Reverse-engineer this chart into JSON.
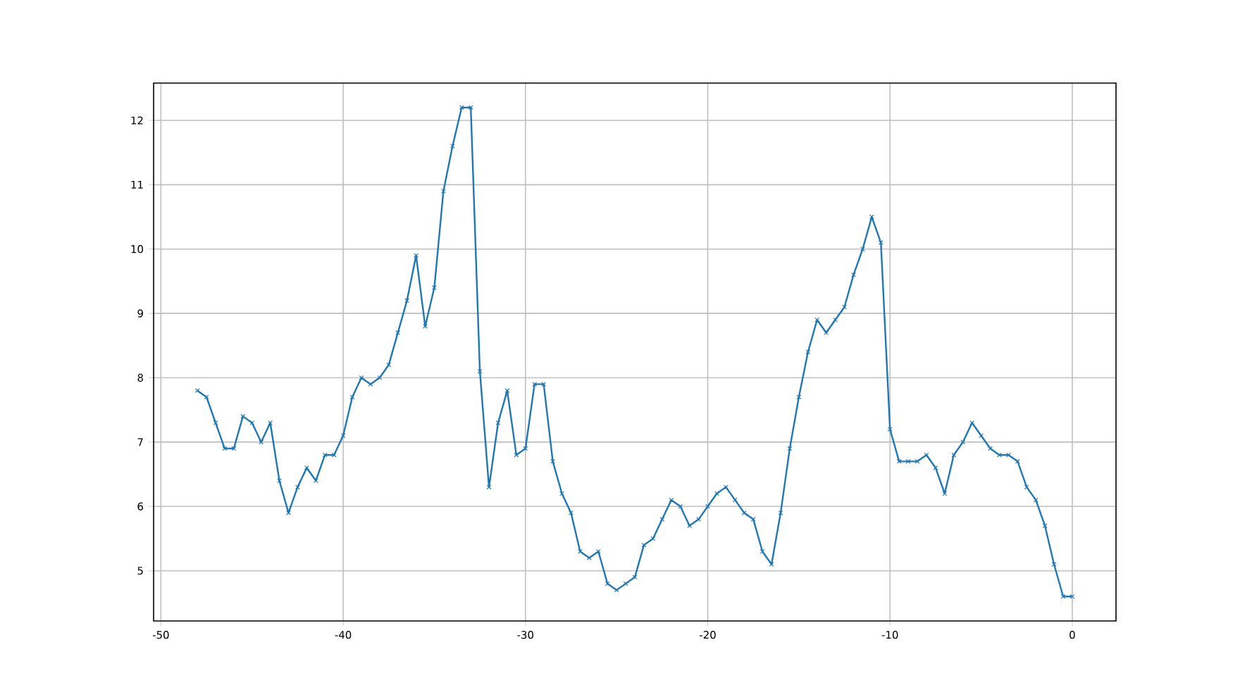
{
  "chart_data": {
    "type": "line",
    "x": [
      -48,
      -47.5,
      -47,
      -46.5,
      -46,
      -45.5,
      -45,
      -44.5,
      -44,
      -43.5,
      -43,
      -42.5,
      -42,
      -41.5,
      -41,
      -40.5,
      -40,
      -39.5,
      -39,
      -38.5,
      -38,
      -37.5,
      -37,
      -36.5,
      -36,
      -35.5,
      -35,
      -34.5,
      -34,
      -33.5,
      -33,
      -32.5,
      -32,
      -31.5,
      -31,
      -30.5,
      -30,
      -29.5,
      -29,
      -28.5,
      -28,
      -27.5,
      -27,
      -26.5,
      -26,
      -25.5,
      -25,
      -24.5,
      -24,
      -23.5,
      -23,
      -22.5,
      -22,
      -21.5,
      -21,
      -20.5,
      -20,
      -19.5,
      -19,
      -18.5,
      -18,
      -17.5,
      -17,
      -16.5,
      -16,
      -15.5,
      -15,
      -14.5,
      -14,
      -13.5,
      -13,
      -12.5,
      -12,
      -11.5,
      -11,
      -10.5,
      -10,
      -9.5,
      -9,
      -8.5,
      -8,
      -7.5,
      -7,
      -6.5,
      -6,
      -5.5,
      -5,
      -4.5,
      -4,
      -3.5,
      -3,
      -2.5,
      -2,
      -1.5,
      -1,
      -0.5,
      0
    ],
    "series": [
      {
        "color": "#1f77b4",
        "values": [
          7.8,
          7.7,
          7.3,
          6.9,
          6.9,
          7.4,
          7.3,
          7.0,
          7.3,
          6.4,
          5.9,
          6.3,
          6.6,
          6.4,
          6.8,
          6.8,
          7.1,
          7.7,
          8.0,
          7.9,
          8.0,
          8.2,
          8.7,
          9.2,
          9.9,
          8.8,
          9.4,
          10.9,
          11.6,
          12.2,
          12.2,
          8.1,
          6.3,
          7.3,
          7.8,
          6.8,
          6.9,
          7.9,
          7.9,
          6.7,
          6.2,
          5.9,
          5.3,
          5.2,
          5.3,
          4.8,
          4.7,
          4.8,
          4.9,
          5.4,
          5.5,
          5.8,
          6.1,
          6.0,
          5.7,
          5.8,
          6.0,
          6.2,
          6.3,
          6.1,
          5.9,
          5.8,
          5.3,
          5.1,
          5.9,
          6.9,
          7.7,
          8.4,
          8.9,
          8.7,
          8.9,
          9.1,
          9.6,
          10.0,
          10.5,
          10.1,
          7.2,
          6.7,
          6.7,
          6.7,
          6.8,
          6.6,
          6.2,
          6.8,
          7.0,
          7.3,
          7.1,
          6.9,
          6.8,
          6.8,
          6.7,
          6.3,
          6.1,
          5.7,
          5.1,
          4.6,
          4.6
        ]
      }
    ],
    "xlim": [
      -50.4,
      2.4
    ],
    "ylim": [
      4.22,
      12.58
    ],
    "xticks": [
      -50,
      -40,
      -30,
      -20,
      -10,
      0
    ],
    "yticks": [
      5,
      6,
      7,
      8,
      9,
      10,
      11,
      12
    ],
    "grid": true,
    "marker": "cross",
    "line_style": "solid"
  }
}
